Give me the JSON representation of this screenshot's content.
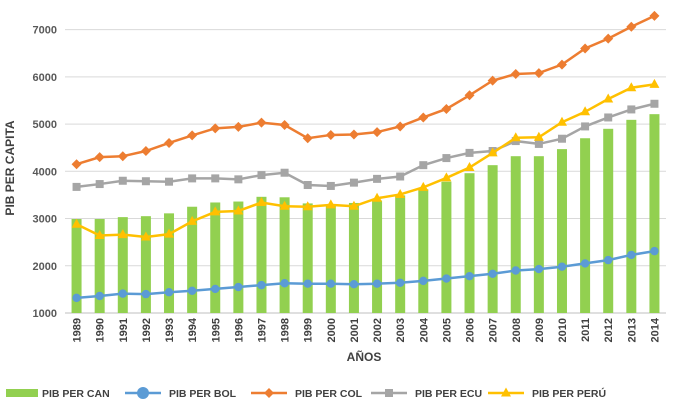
{
  "chart_data": {
    "type": "bar+line",
    "title": "",
    "xlabel": "AÑOS",
    "ylabel": "PIB PER CAPITA",
    "ylim": [
      1000,
      7500
    ],
    "yticks": [
      1000,
      2000,
      3000,
      4000,
      5000,
      6000,
      7000
    ],
    "grid": true,
    "legend_position": "bottom",
    "categories": [
      "1989",
      "1990",
      "1991",
      "1992",
      "1993",
      "1994",
      "1995",
      "1996",
      "1997",
      "1998",
      "1999",
      "2000",
      "2001",
      "2002",
      "2003",
      "2004",
      "2005",
      "2006",
      "2007",
      "2008",
      "2009",
      "2010",
      "2011",
      "2012",
      "2013",
      "2014"
    ],
    "series": [
      {
        "name": "PIB PER CAN",
        "kind": "bar",
        "color": "#92D050",
        "values": [
          2990,
          2990,
          3030,
          3050,
          3110,
          3250,
          3340,
          3360,
          3460,
          3450,
          3320,
          3300,
          3330,
          3380,
          3490,
          3620,
          3780,
          3960,
          4130,
          4320,
          4320,
          4470,
          4700,
          4900,
          5090,
          5210
        ]
      },
      {
        "name": "PIB PER BOL",
        "kind": "line",
        "marker": "circle",
        "color": "#5B9BD5",
        "values": [
          1320,
          1360,
          1410,
          1400,
          1440,
          1470,
          1510,
          1550,
          1590,
          1630,
          1620,
          1620,
          1610,
          1620,
          1640,
          1680,
          1730,
          1780,
          1830,
          1900,
          1930,
          1980,
          2050,
          2120,
          2230,
          2310
        ]
      },
      {
        "name": "PIB PER COL",
        "kind": "line",
        "marker": "diamond",
        "color": "#ED7D31",
        "values": [
          4150,
          4300,
          4320,
          4430,
          4600,
          4760,
          4910,
          4940,
          5030,
          4980,
          4700,
          4770,
          4780,
          4830,
          4950,
          5140,
          5320,
          5610,
          5920,
          6060,
          6080,
          6260,
          6600,
          6810,
          7060,
          7290
        ]
      },
      {
        "name": "PIB PER ECU",
        "kind": "line",
        "marker": "square",
        "color": "#A5A5A5",
        "values": [
          3670,
          3730,
          3800,
          3790,
          3780,
          3850,
          3850,
          3830,
          3920,
          3970,
          3710,
          3690,
          3760,
          3840,
          3890,
          4130,
          4280,
          4390,
          4430,
          4640,
          4580,
          4690,
          4950,
          5140,
          5310,
          5430
        ]
      },
      {
        "name": "PIB PER PERÚ",
        "kind": "line",
        "marker": "triangle",
        "color": "#FFC000",
        "values": [
          2880,
          2640,
          2660,
          2610,
          2670,
          2940,
          3140,
          3160,
          3340,
          3260,
          3250,
          3290,
          3260,
          3430,
          3510,
          3660,
          3860,
          4080,
          4390,
          4710,
          4720,
          5040,
          5260,
          5530,
          5770,
          5840
        ]
      }
    ]
  }
}
